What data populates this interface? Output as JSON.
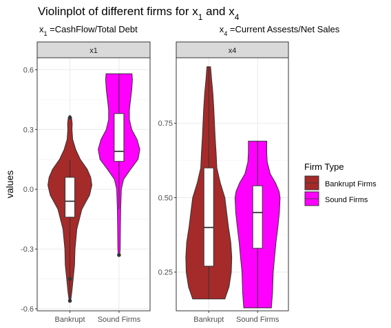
{
  "chart_data": {
    "type": "violin",
    "title": "Violinplot of different firms for",
    "title_vars": [
      {
        "base": "x",
        "sub": "1",
        "sep": " and "
      },
      {
        "base": "x",
        "sub": "4",
        "sep": ""
      }
    ],
    "ylabel": "values",
    "categories": [
      "Bankrupt",
      "Sound Firms"
    ],
    "colors": {
      "Bankrupt": "#a52a2a",
      "Sound Firms": "#ff00ff"
    },
    "legend": {
      "title": "Firm Type",
      "position": "right",
      "entries": [
        {
          "label": "Bankrupt Firms",
          "color": "#a52a2a"
        },
        {
          "label": "Sound Firms",
          "color": "#ff00ff"
        }
      ]
    },
    "grid": true,
    "panels": [
      {
        "strip": "x1",
        "subtitle_var": {
          "base": "x",
          "sub": "1"
        },
        "subtitle_text": " =CashFlow/Total Debt",
        "ylim": [
          -0.61,
          0.66
        ],
        "yticks": [
          -0.6,
          -0.3,
          0.0,
          0.3,
          0.6
        ],
        "ytick_labels": [
          "-0.6",
          "-0.3",
          "0.0",
          "0.3",
          "0.6"
        ],
        "violins": [
          {
            "group": "Bankrupt",
            "density": [
              [
                -0.56,
                0.03
              ],
              [
                -0.52,
                0.08
              ],
              [
                -0.45,
                0.14
              ],
              [
                -0.38,
                0.2
              ],
              [
                -0.3,
                0.22
              ],
              [
                -0.2,
                0.3
              ],
              [
                -0.1,
                0.52
              ],
              [
                -0.03,
                0.85
              ],
              [
                0.02,
                0.95
              ],
              [
                0.06,
                0.9
              ],
              [
                0.1,
                0.75
              ],
              [
                0.15,
                0.45
              ],
              [
                0.2,
                0.25
              ],
              [
                0.25,
                0.12
              ],
              [
                0.3,
                0.09
              ],
              [
                0.33,
                0.1
              ],
              [
                0.36,
                0.07
              ],
              [
                0.37,
                0.02
              ]
            ],
            "box": {
              "whisker_low": -0.56,
              "q1": -0.14,
              "median": -0.06,
              "q3": 0.06,
              "whisker_high": 0.15
            },
            "outliers": [
              -0.56,
              -0.45,
              0.36
            ]
          },
          {
            "group": "Sound Firms",
            "density": [
              [
                -0.33,
                0.03
              ],
              [
                -0.3,
                0.05
              ],
              [
                -0.2,
                0.06
              ],
              [
                -0.1,
                0.07
              ],
              [
                0.0,
                0.1
              ],
              [
                0.05,
                0.2
              ],
              [
                0.1,
                0.5
              ],
              [
                0.15,
                0.82
              ],
              [
                0.2,
                0.9
              ],
              [
                0.25,
                0.78
              ],
              [
                0.3,
                0.55
              ],
              [
                0.35,
                0.45
              ],
              [
                0.4,
                0.45
              ],
              [
                0.45,
                0.5
              ],
              [
                0.5,
                0.55
              ],
              [
                0.55,
                0.58
              ],
              [
                0.58,
                0.56
              ]
            ],
            "box": {
              "whisker_low": -0.1,
              "q1": 0.14,
              "median": 0.19,
              "q3": 0.38,
              "whisker_high": 0.58
            },
            "outliers": [
              -0.33
            ]
          }
        ]
      },
      {
        "strip": "x4",
        "subtitle_var": {
          "base": "x",
          "sub": "4"
        },
        "subtitle_text": " =Current Assests/Net Sales",
        "ylim": [
          0.12,
          0.97
        ],
        "yticks": [
          0.25,
          0.5,
          0.75
        ],
        "ytick_labels": [
          "0.25",
          "0.50",
          "0.75"
        ],
        "violins": [
          {
            "group": "Bankrupt",
            "density": [
              [
                0.16,
                0.7
              ],
              [
                0.2,
                0.88
              ],
              [
                0.25,
                0.98
              ],
              [
                0.3,
                1.0
              ],
              [
                0.35,
                0.96
              ],
              [
                0.4,
                0.86
              ],
              [
                0.45,
                0.78
              ],
              [
                0.5,
                0.7
              ],
              [
                0.55,
                0.5
              ],
              [
                0.6,
                0.35
              ],
              [
                0.65,
                0.32
              ],
              [
                0.7,
                0.28
              ],
              [
                0.75,
                0.25
              ],
              [
                0.8,
                0.22
              ],
              [
                0.85,
                0.18
              ],
              [
                0.9,
                0.12
              ],
              [
                0.94,
                0.08
              ]
            ],
            "box": {
              "whisker_low": 0.16,
              "q1": 0.27,
              "median": 0.4,
              "q3": 0.6,
              "whisker_high": 0.94
            },
            "outliers": []
          },
          {
            "group": "Sound Firms",
            "density": [
              [
                0.13,
                0.6
              ],
              [
                0.18,
                0.65
              ],
              [
                0.25,
                0.68
              ],
              [
                0.3,
                0.74
              ],
              [
                0.35,
                0.8
              ],
              [
                0.4,
                0.88
              ],
              [
                0.45,
                0.95
              ],
              [
                0.5,
                0.98
              ],
              [
                0.52,
                0.94
              ],
              [
                0.55,
                0.78
              ],
              [
                0.58,
                0.55
              ],
              [
                0.62,
                0.42
              ],
              [
                0.65,
                0.4
              ],
              [
                0.69,
                0.4
              ]
            ],
            "box": {
              "whisker_low": 0.13,
              "q1": 0.33,
              "median": 0.45,
              "q3": 0.54,
              "whisker_high": 0.69
            },
            "outliers": []
          }
        ]
      }
    ]
  }
}
